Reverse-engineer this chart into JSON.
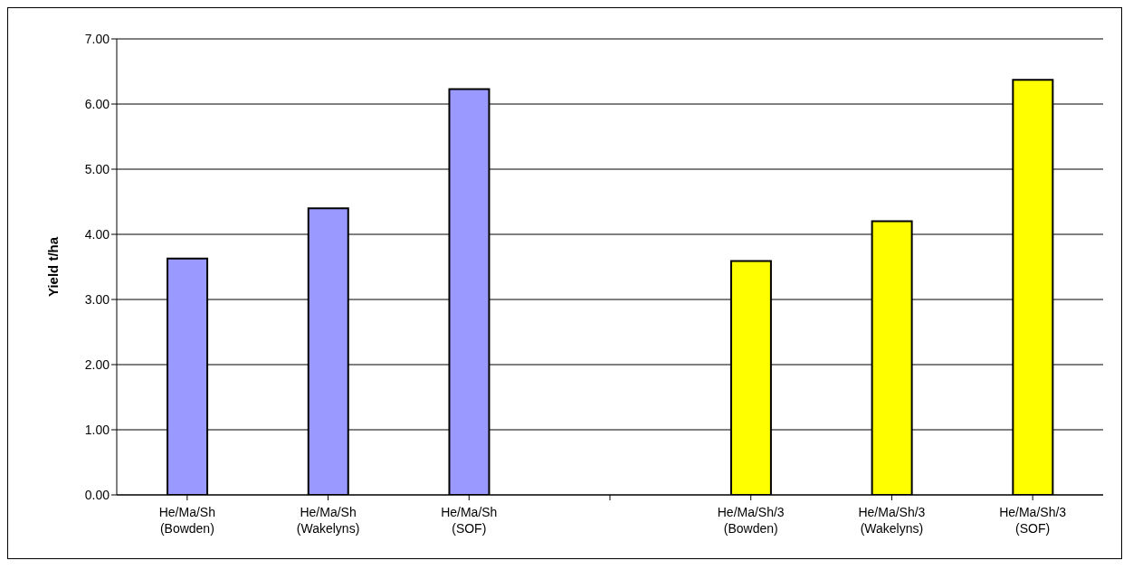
{
  "chart_data": {
    "type": "bar",
    "ylabel": "Yield t/ha",
    "categories": [
      "He/Ma/Sh (Bowden)",
      "He/Ma/Sh (Wakelyns)",
      "He/Ma/Sh (SOF)",
      null,
      "He/Ma/Sh/3 (Bowden)",
      "He/Ma/Sh/3 (Wakelyns)",
      "He/Ma/Sh/3 (SOF)"
    ],
    "values": [
      3.63,
      4.4,
      6.23,
      null,
      3.59,
      4.2,
      6.37
    ],
    "colors": [
      "#9999ff",
      "#9999ff",
      "#9999ff",
      "#9999ff",
      "#ffff00",
      "#ffff00",
      "#ffff00"
    ],
    "ylim": [
      0,
      7
    ],
    "yticks": [
      {
        "value": 0,
        "label": "0.00"
      },
      {
        "value": 1,
        "label": "1.00"
      },
      {
        "value": 2,
        "label": "2.00"
      },
      {
        "value": 3,
        "label": "3.00"
      },
      {
        "value": 4,
        "label": "4.00"
      },
      {
        "value": 5,
        "label": "5.00"
      },
      {
        "value": 6,
        "label": "6.00"
      },
      {
        "value": 7,
        "label": "7.00"
      }
    ],
    "grid": "y"
  }
}
